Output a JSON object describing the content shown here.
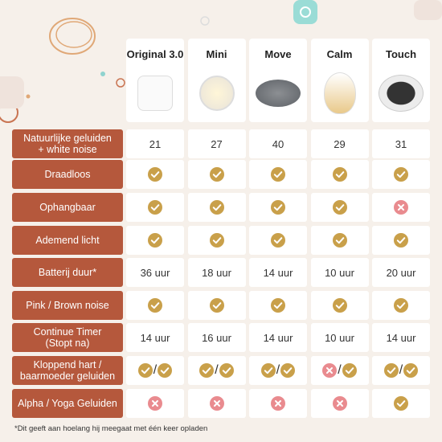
{
  "table": {
    "columns": [
      "Original 3.0",
      "Mini",
      "Move",
      "Calm",
      "Touch"
    ],
    "rows": [
      {
        "label": "Natuurlijke geluiden\n+ white noise",
        "cells": [
          21,
          27,
          40,
          29,
          31
        ]
      },
      {
        "label": "Draadloos",
        "cells": [
          true,
          true,
          true,
          true,
          true
        ]
      },
      {
        "label": "Ophangbaar",
        "cells": [
          true,
          true,
          true,
          true,
          false
        ]
      },
      {
        "label": "Ademend licht",
        "cells": [
          true,
          true,
          true,
          true,
          true
        ]
      },
      {
        "label": "Batterij duur*",
        "cells": [
          "36 uur",
          "18 uur",
          "14 uur",
          "10 uur",
          "20 uur"
        ]
      },
      {
        "label": "Pink / Brown noise",
        "cells": [
          true,
          true,
          true,
          true,
          true
        ]
      },
      {
        "label": "Continue Timer\n(Stopt na)",
        "cells": [
          "14 uur",
          "16 uur",
          "14 uur",
          "10 uur",
          "14 uur"
        ]
      },
      {
        "label": "Kloppend hart /\nbaarmoeder geluiden",
        "cells": [
          [
            true,
            "/",
            true
          ],
          [
            true,
            "/",
            true
          ],
          [
            true,
            "/",
            true
          ],
          [
            false,
            "/",
            true
          ],
          [
            true,
            "/",
            true
          ]
        ]
      },
      {
        "label": "Alpha / Yoga Geluiden",
        "cells": [
          false,
          false,
          false,
          false,
          true
        ]
      }
    ]
  },
  "footnote": "*Dit geeft aan hoelang hij meegaat met één keer opladen"
}
